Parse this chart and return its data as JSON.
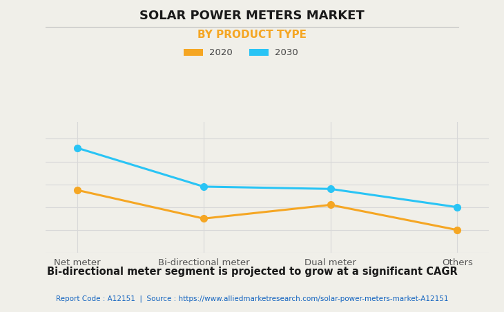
{
  "title": "SOLAR POWER METERS MARKET",
  "subtitle": "BY PRODUCT TYPE",
  "categories": [
    "Net meter",
    "Bi-directional meter",
    "Dual meter",
    "Others"
  ],
  "series": [
    {
      "label": "2020",
      "color": "#F5A623",
      "values": [
        55,
        30,
        42,
        20
      ]
    },
    {
      "label": "2030",
      "color": "#29C4F5",
      "values": [
        92,
        58,
        56,
        40
      ]
    }
  ],
  "ylim": [
    0,
    115
  ],
  "background_color": "#F0EFE9",
  "plot_background": "#F0EFE9",
  "grid_color": "#D8D8D8",
  "title_fontsize": 13,
  "subtitle_fontsize": 11,
  "tick_fontsize": 9.5,
  "legend_fontsize": 9.5,
  "footnote": "Bi-directional meter segment is projected to grow at a significant CAGR",
  "source_text": "Report Code : A12151  |  Source : https://www.alliedmarketresearch.com/solar-power-meters-market-A12151",
  "source_color": "#1565C0",
  "title_color": "#1A1A1A",
  "subtitle_color": "#F5A623",
  "tick_color": "#555555",
  "footnote_color": "#1A1A1A"
}
